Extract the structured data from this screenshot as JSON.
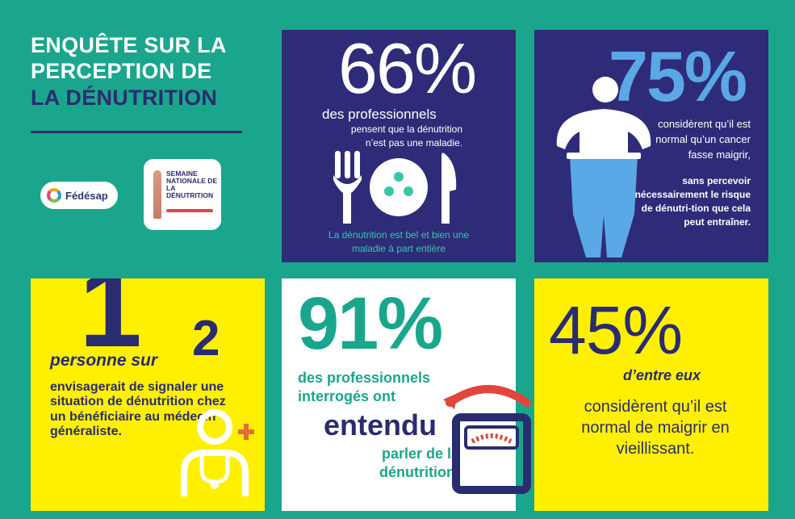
{
  "title": {
    "line1": "ENQUÊTE SUR LA",
    "line2": "PERCEPTION DE",
    "line3": "LA DÉNUTRITION"
  },
  "logos": {
    "fedesap": "Fédésap",
    "semaine": "SEMAINE NATIONALE DE LA DÉNUTRITION"
  },
  "stat66": {
    "value": "66%",
    "line1": "des professionnels",
    "line2": "pensent que la dénutrition n’est pas une maladie.",
    "footer": "La dénutrition est bel et bien une maladie à part entière"
  },
  "stat75": {
    "value": "75%",
    "text1": "considèrent qu’il est normal qu’un cancer fasse maigrir,",
    "text2": "sans percevoir nécessairement le risque de dénutri-tion que cela peut entraîner."
  },
  "stat1of2": {
    "one": "1",
    "two": "2",
    "label": "personne sur",
    "desc": "envisagerait de signaler une situation de dénutrition chez un bénéficiaire au médecin généraliste."
  },
  "stat91": {
    "value": "91%",
    "line1": "des professionnels interrogés ont",
    "line2": "entendu",
    "line3": "parler de la dénutrition."
  },
  "stat45": {
    "value": "45%",
    "sub": "d’entre eux",
    "desc": "considèrent qu’il est normal de maigrir en vieillissant."
  },
  "colors": {
    "background": "#1aa68d",
    "navy": "#2e2c78",
    "yellow": "#fff000",
    "blue": "#5aa8e6",
    "teal": "#33c9a4"
  }
}
